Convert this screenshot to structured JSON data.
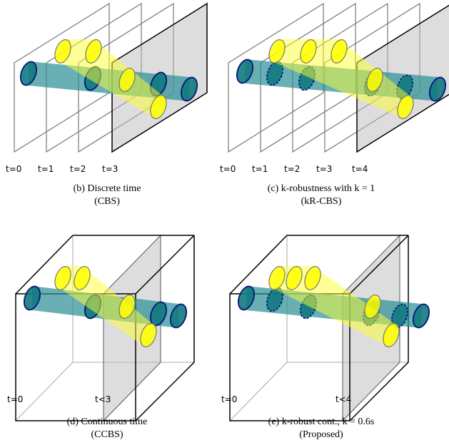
{
  "panels": [
    {
      "time_labels": [
        "t=0",
        "t=1",
        "t=2",
        "t=3"
      ],
      "caption": [
        "(b) Discrete time",
        "(CBS)"
      ]
    },
    {
      "time_labels": [
        "t=0",
        "t=1",
        "t=2",
        "t=3",
        "t=4"
      ],
      "caption": [
        "(c) k-robustness with k = 1",
        "(kR-CBS)"
      ]
    },
    {
      "time_labels": [
        "t=0",
        "t<3"
      ],
      "caption": [
        "(d) Continuous time",
        "(CCBS)"
      ]
    },
    {
      "time_labels": [
        "t=0",
        "t<4"
      ],
      "caption": [
        "(e) k-robust cont., k = 0.6s",
        "(Proposed)"
      ]
    }
  ]
}
